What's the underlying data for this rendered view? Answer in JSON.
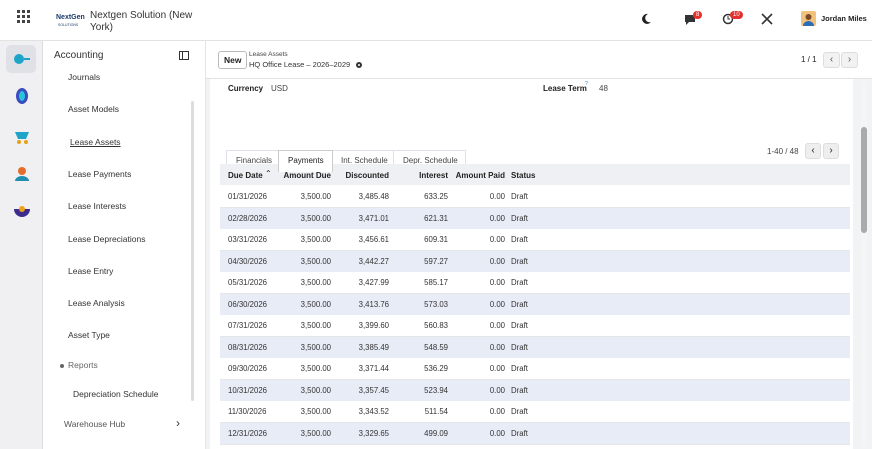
{
  "topbar": {
    "logo_name": "NextGen",
    "logo_sub": "SOLUTIONS",
    "company": "Nextgen Solution (New York)",
    "chat_badge": "8",
    "activity_badge": "10",
    "user": "Jordan Miles"
  },
  "sidebar": {
    "app": "Accounting",
    "menu": [
      "Journals",
      "Asset Models",
      "Lease Assets",
      "Lease Payments",
      "Lease Interests",
      "Lease Depreciations",
      "Lease Entry",
      "Lease Analysis",
      "Asset Type"
    ],
    "section": "Reports",
    "section_items": [
      "Depreciation Schedule"
    ],
    "next_app": "Warehouse Hub"
  },
  "control_panel": {
    "new_button": "New",
    "breadcrumb": "Lease Assets",
    "record": "HQ Office Lease – 2026–2029",
    "pager": "1 / 1"
  },
  "form": {
    "fields": [
      {
        "label": "Currency",
        "value": "USD"
      },
      {
        "label": "Lease Term",
        "help": "?",
        "value": "48"
      }
    ],
    "tabs": [
      "Financials",
      "Payments",
      "Int. Schedule",
      "Depr. Schedule"
    ]
  },
  "table": {
    "pager": "1-40 / 48",
    "columns": [
      "Due Date",
      "Amount Due",
      "Discounted",
      "Interest",
      "Amount Paid",
      "Status"
    ],
    "rows": [
      [
        "01/31/2026",
        "3,500.00",
        "3,485.48",
        "633.25",
        "0.00",
        "Draft"
      ],
      [
        "02/28/2026",
        "3,500.00",
        "3,471.01",
        "621.31",
        "0.00",
        "Draft"
      ],
      [
        "03/31/2026",
        "3,500.00",
        "3,456.61",
        "609.31",
        "0.00",
        "Draft"
      ],
      [
        "04/30/2026",
        "3,500.00",
        "3,442.27",
        "597.27",
        "0.00",
        "Draft"
      ],
      [
        "05/31/2026",
        "3,500.00",
        "3,427.99",
        "585.17",
        "0.00",
        "Draft"
      ],
      [
        "06/30/2026",
        "3,500.00",
        "3,413.76",
        "573.03",
        "0.00",
        "Draft"
      ],
      [
        "07/31/2026",
        "3,500.00",
        "3,399.60",
        "560.83",
        "0.00",
        "Draft"
      ],
      [
        "08/31/2026",
        "3,500.00",
        "3,385.49",
        "548.59",
        "0.00",
        "Draft"
      ],
      [
        "09/30/2026",
        "3,500.00",
        "3,371.44",
        "536.29",
        "0.00",
        "Draft"
      ],
      [
        "10/31/2026",
        "3,500.00",
        "3,357.45",
        "523.94",
        "0.00",
        "Draft"
      ],
      [
        "11/30/2026",
        "3,500.00",
        "3,343.52",
        "511.54",
        "0.00",
        "Draft"
      ],
      [
        "12/31/2026",
        "3,500.00",
        "3,329.65",
        "499.09",
        "0.00",
        "Draft"
      ]
    ]
  }
}
